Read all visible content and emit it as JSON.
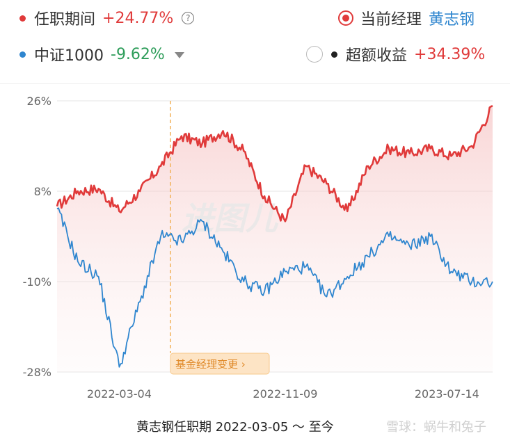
{
  "legend": {
    "tenure": {
      "label": "任职期间",
      "value": "+24.77%",
      "color": "#e03a3a"
    },
    "current_manager": {
      "label": "当前经理",
      "name": "黄志钢"
    },
    "benchmark": {
      "label": "中证1000",
      "value": "-9.62%",
      "color": "#2f86cf"
    },
    "excess": {
      "label": "超额收益",
      "value": "+34.39%"
    }
  },
  "change_marker": {
    "label": "基金经理变更 ›",
    "date": "2022-06"
  },
  "footer": {
    "period_text": "黄志钢任职期 2022-03-05 ～ 至今",
    "watermark": "雪球：蜗牛和兔子"
  },
  "watermark_center": "进图儿",
  "chart_data": {
    "type": "line",
    "y_ticks": [
      "26%",
      "8%",
      "-10%",
      "-28%"
    ],
    "y_tick_values": [
      26,
      8,
      -10,
      -28
    ],
    "ylim": [
      -28,
      26
    ],
    "x_ticks": [
      "2022-03-04",
      "2022-11-09",
      "2023-07-14"
    ],
    "x": [
      "2021-12",
      "2022-01",
      "2022-02",
      "2022-03",
      "2022-04",
      "2022-05",
      "2022-06",
      "2022-07",
      "2022-08",
      "2022-09",
      "2022-10",
      "2022-11",
      "2022-12",
      "2023-01",
      "2023-02",
      "2023-03",
      "2023-04",
      "2023-05",
      "2023-06",
      "2023-07",
      "2023-08",
      "2023-09"
    ],
    "series": [
      {
        "name": "任职期间",
        "color": "#e03a3a",
        "values": [
          5,
          8,
          8.5,
          4,
          8,
          13,
          19,
          17.5,
          20,
          16,
          7,
          2,
          13,
          9.5,
          4,
          13,
          16.5,
          15.5,
          16.5,
          15,
          17,
          25
        ]
      },
      {
        "name": "中证1000",
        "color": "#2f86cf",
        "values": [
          4.5,
          -6,
          -9,
          -27,
          -14,
          -1,
          -2,
          2,
          -4,
          -10,
          -12,
          -8,
          -7,
          -13,
          -9,
          -5,
          -1,
          -3,
          -1,
          -8,
          -10,
          -10
        ]
      }
    ]
  }
}
